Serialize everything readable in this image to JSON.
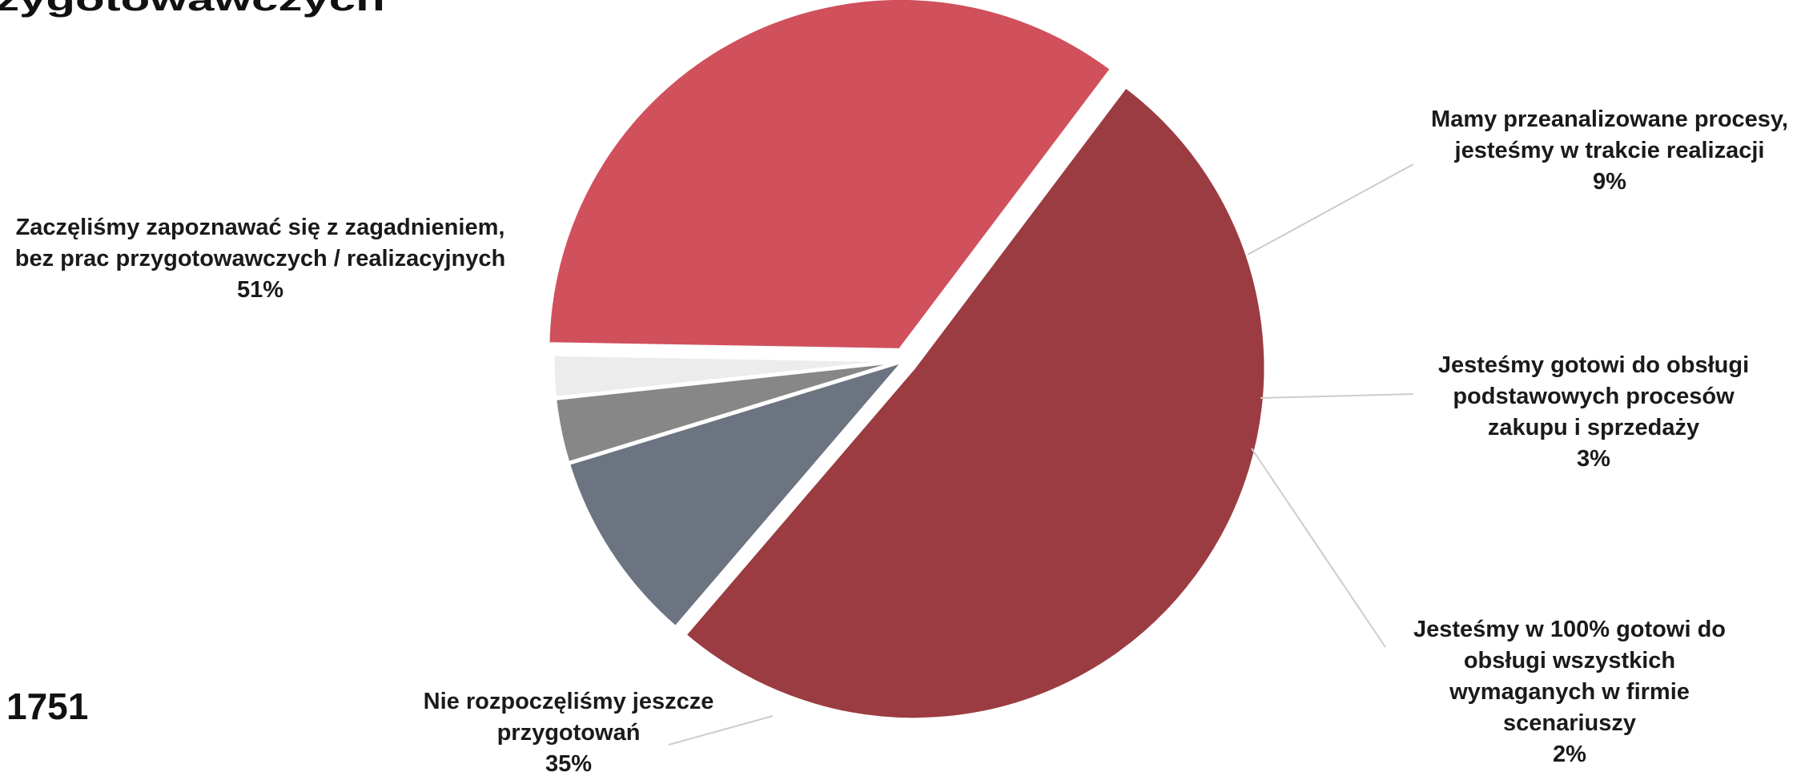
{
  "header": {
    "title_fragment": "zygotowawczych",
    "sample_size": "1751"
  },
  "chart_data": {
    "type": "pie",
    "slices": [
      {
        "label_lines": [
          "Zaczęliśmy zapoznawać się z zagadnieniem,",
          "bez prac przygotowawczych / realizacyjnych"
        ],
        "percent_label": "51%",
        "value": 51,
        "color": "#9b3c42",
        "exploded": true
      },
      {
        "label_lines": [
          "Mamy przeanalizowane procesy,",
          "jesteśmy w trakcie realizacji"
        ],
        "percent_label": "9%",
        "value": 9,
        "color": "#6b7480",
        "exploded": false
      },
      {
        "label_lines": [
          "Jesteśmy gotowi do obsługi",
          "podstawowych procesów",
          "zakupu i sprzedaży"
        ],
        "percent_label": "3%",
        "value": 3,
        "color": "#878787",
        "exploded": false
      },
      {
        "label_lines": [
          "Jesteśmy w 100% gotowi do",
          "obsługi wszystkich",
          "wymaganych w firmie",
          "scenariuszy"
        ],
        "percent_label": "2%",
        "value": 2,
        "color": "#ececec",
        "exploded": false
      },
      {
        "label_lines": [
          "Nie rozpoczęliśmy jeszcze",
          "przygotowań"
        ],
        "percent_label": "35%",
        "value": 35,
        "color": "#d0505c",
        "exploded": true
      }
    ]
  }
}
